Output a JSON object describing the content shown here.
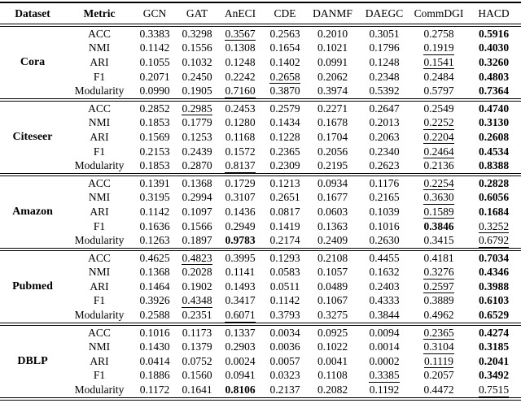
{
  "table": {
    "columns": [
      "Dataset",
      "Metric",
      "GCN",
      "GAT",
      "AnECI",
      "CDE",
      "DANMF",
      "DAEGC",
      "CommDGI",
      "HACD"
    ],
    "groups": [
      {
        "dataset": "Cora",
        "rows": [
          {
            "metric": "ACC",
            "values": [
              "0.3383",
              "0.3298",
              "0.3567",
              "0.2563",
              "0.2010",
              "0.3051",
              "0.2758",
              "0.5916"
            ],
            "underline": 2,
            "bold": 7
          },
          {
            "metric": "NMI",
            "values": [
              "0.1142",
              "0.1556",
              "0.1308",
              "0.1654",
              "0.1021",
              "0.1796",
              "0.1919",
              "0.4030"
            ],
            "underline": 6,
            "bold": 7
          },
          {
            "metric": "ARI",
            "values": [
              "0.1055",
              "0.1032",
              "0.1248",
              "0.1402",
              "0.0991",
              "0.1248",
              "0.1541",
              "0.3260"
            ],
            "underline": 6,
            "bold": 7
          },
          {
            "metric": "F1",
            "values": [
              "0.2071",
              "0.2450",
              "0.2242",
              "0.2658",
              "0.2062",
              "0.2348",
              "0.2484",
              "0.4803"
            ],
            "underline": 3,
            "bold": 7
          },
          {
            "metric": "Modularity",
            "values": [
              "0.0990",
              "0.1905",
              "0.7160",
              "0.3870",
              "0.3974",
              "0.5392",
              "0.5797",
              "0.7364"
            ],
            "underline": 2,
            "bold": 7
          }
        ]
      },
      {
        "dataset": "Citeseer",
        "rows": [
          {
            "metric": "ACC",
            "values": [
              "0.2852",
              "0.2985",
              "0.2453",
              "0.2579",
              "0.2271",
              "0.2647",
              "0.2549",
              "0.4740"
            ],
            "underline": 1,
            "bold": 7
          },
          {
            "metric": "NMI",
            "values": [
              "0.1853",
              "0.1779",
              "0.1280",
              "0.1434",
              "0.1678",
              "0.2013",
              "0.2252",
              "0.3130"
            ],
            "underline": 6,
            "bold": 7
          },
          {
            "metric": "ARI",
            "values": [
              "0.1569",
              "0.1253",
              "0.1168",
              "0.1228",
              "0.1704",
              "0.2063",
              "0.2204",
              "0.2608"
            ],
            "underline": 6,
            "bold": 7
          },
          {
            "metric": "F1",
            "values": [
              "0.2153",
              "0.2439",
              "0.1572",
              "0.2365",
              "0.2056",
              "0.2340",
              "0.2464",
              "0.4534"
            ],
            "underline": 6,
            "bold": 7
          },
          {
            "metric": "Modularity",
            "values": [
              "0.1853",
              "0.2870",
              "0.8137",
              "0.2309",
              "0.2195",
              "0.2623",
              "0.2136",
              "0.8388"
            ],
            "underline": 2,
            "bold": 7
          }
        ]
      },
      {
        "dataset": "Amazon",
        "rows": [
          {
            "metric": "ACC",
            "values": [
              "0.1391",
              "0.1368",
              "0.1729",
              "0.1213",
              "0.0934",
              "0.1176",
              "0.2254",
              "0.2828"
            ],
            "underline": 6,
            "bold": 7
          },
          {
            "metric": "NMI",
            "values": [
              "0.3195",
              "0.2994",
              "0.3107",
              "0.2651",
              "0.1677",
              "0.2165",
              "0.3630",
              "0.6056"
            ],
            "underline": 6,
            "bold": 7
          },
          {
            "metric": "ARI",
            "values": [
              "0.1142",
              "0.1097",
              "0.1436",
              "0.0817",
              "0.0603",
              "0.1039",
              "0.1589",
              "0.1684"
            ],
            "underline": 6,
            "bold": 7
          },
          {
            "metric": "F1",
            "values": [
              "0.1636",
              "0.1566",
              "0.2949",
              "0.1419",
              "0.1363",
              "0.1016",
              "0.3846",
              "0.3252"
            ],
            "underline": 7,
            "bold": 6
          },
          {
            "metric": "Modularity",
            "values": [
              "0.1263",
              "0.1897",
              "0.9783",
              "0.2174",
              "0.2409",
              "0.2630",
              "0.3415",
              "0.6792"
            ],
            "underline": 7,
            "bold": 2
          }
        ]
      },
      {
        "dataset": "Pubmed",
        "rows": [
          {
            "metric": "ACC",
            "values": [
              "0.4625",
              "0.4823",
              "0.3995",
              "0.1293",
              "0.2108",
              "0.4455",
              "0.4181",
              "0.7034"
            ],
            "underline": 1,
            "bold": 7
          },
          {
            "metric": "NMI",
            "values": [
              "0.1368",
              "0.2028",
              "0.1141",
              "0.0583",
              "0.1057",
              "0.1632",
              "0.3276",
              "0.4346"
            ],
            "underline": 6,
            "bold": 7
          },
          {
            "metric": "ARI",
            "values": [
              "0.1464",
              "0.1902",
              "0.1493",
              "0.0511",
              "0.0489",
              "0.2403",
              "0.2597",
              "0.3988"
            ],
            "underline": 6,
            "bold": 7
          },
          {
            "metric": "F1",
            "values": [
              "0.3926",
              "0.4348",
              "0.3417",
              "0.1142",
              "0.1067",
              "0.4333",
              "0.3889",
              "0.6103"
            ],
            "underline": 1,
            "bold": 7
          },
          {
            "metric": "Modularity",
            "values": [
              "0.2588",
              "0.2351",
              "0.6071",
              "0.3793",
              "0.3275",
              "0.3844",
              "0.4962",
              "0.6529"
            ],
            "underline": 2,
            "bold": 7
          }
        ]
      },
      {
        "dataset": "DBLP",
        "rows": [
          {
            "metric": "ACC",
            "values": [
              "0.1016",
              "0.1173",
              "0.1337",
              "0.0034",
              "0.0925",
              "0.0094",
              "0.2365",
              "0.4274"
            ],
            "underline": 6,
            "bold": 7
          },
          {
            "metric": "NMI",
            "values": [
              "0.1430",
              "0.1379",
              "0.2903",
              "0.0036",
              "0.1022",
              "0.0014",
              "0.3104",
              "0.3185"
            ],
            "underline": 6,
            "bold": 7
          },
          {
            "metric": "ARI",
            "values": [
              "0.0414",
              "0.0752",
              "0.0024",
              "0.0057",
              "0.0041",
              "0.0002",
              "0.1119",
              "0.2041"
            ],
            "underline": 6,
            "bold": 7
          },
          {
            "metric": "F1",
            "values": [
              "0.1886",
              "0.1560",
              "0.0941",
              "0.0323",
              "0.1108",
              "0.3385",
              "0.2057",
              "0.3492"
            ],
            "underline": 5,
            "bold": 7
          },
          {
            "metric": "Modularity",
            "values": [
              "0.1172",
              "0.1641",
              "0.8106",
              "0.2137",
              "0.2082",
              "0.1192",
              "0.4472",
              "0.7515"
            ],
            "underline": 7,
            "bold": 2
          }
        ]
      }
    ],
    "styles": {
      "best_color": "#000000",
      "text_color": "#000000",
      "rule_color": "#000000"
    }
  }
}
